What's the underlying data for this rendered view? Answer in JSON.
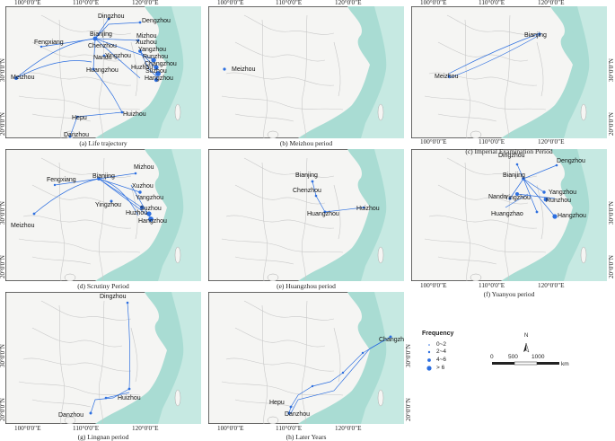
{
  "axis": {
    "lon_labels": [
      "100°0'0\"E",
      "110°0'0\"E",
      "120°0'0\"E"
    ],
    "lat_labels": [
      "30°0'0\"N",
      "20°0'0\"N"
    ]
  },
  "panels": [
    {
      "id": "a",
      "caption": "(a) Life trajectory",
      "cities": [
        "Dingzhou",
        "Dengzhou",
        "Fengxiang",
        "Bianjing",
        "Mizhou",
        "Chenzhou",
        "Xuzhou",
        "Yangzhou",
        "Runzhou",
        "Nandu",
        "Yingzhou",
        "Changzhou",
        "Meizhou",
        "Huangzhou",
        "Huzhou",
        "Suzhou",
        "Hangzhou",
        "Huizhou",
        "Hepu",
        "Danzhou"
      ]
    },
    {
      "id": "b",
      "caption": "(b) Meizhou period",
      "cities": [
        "Meizhou"
      ]
    },
    {
      "id": "c",
      "caption": "(c) Imperial Examination Period",
      "cities": [
        "Bianjing",
        "Meizhou"
      ]
    },
    {
      "id": "d",
      "caption": "(d) Scrutiny Period",
      "cities": [
        "Mizhou",
        "Fengxiang",
        "Bianjing",
        "Xuzhou",
        "Yangzhou",
        "Yingzhou",
        "Suzhou",
        "Huzhou",
        "Hangzhou",
        "Meizhou"
      ]
    },
    {
      "id": "e",
      "caption": "(e) Huangzhou period",
      "cities": [
        "Bianjing",
        "Chenzhou",
        "Huangzhou",
        "Huizhou"
      ]
    },
    {
      "id": "f",
      "caption": "(f) Yuanyou period",
      "cities": [
        "Dingzhou",
        "Dengzhou",
        "Bianjing",
        "Yangzhou",
        "Nandu",
        "Yingzhou",
        "Runzhou",
        "Huangzhao",
        "Hangzhou"
      ]
    },
    {
      "id": "g",
      "caption": "(g) Lingnan period",
      "cities": [
        "Dingzhou",
        "Huizhou",
        "Danzhou"
      ]
    },
    {
      "id": "h",
      "caption": "(h) Later Years",
      "cities": [
        "Changzhou",
        "Hepu",
        "Danzhou"
      ]
    }
  ],
  "legend": {
    "title": "Frequency",
    "items": [
      "0~2",
      "2~4",
      "4~6",
      "> 6"
    ],
    "north": "N",
    "scale_labels": [
      "0",
      "500",
      "1000"
    ],
    "scale_unit": "km"
  },
  "colors": {
    "route": "#2d6fe0",
    "sea": "#a9dcd3",
    "land": "#f5f5f3"
  }
}
